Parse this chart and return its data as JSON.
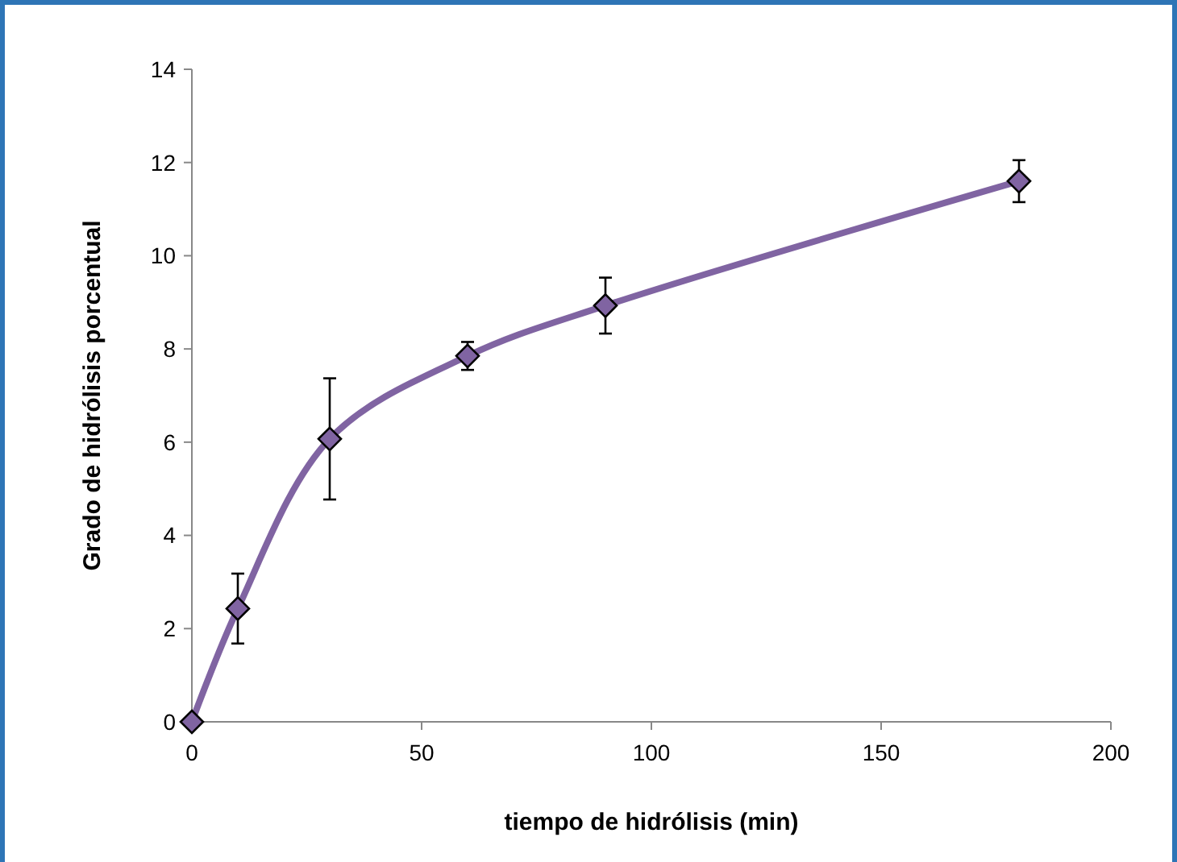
{
  "chart_data": {
    "type": "line",
    "xlabel": "tiempo de hidrólisis (min)",
    "ylabel": "Grado de hidrólisis porcentual",
    "x": [
      0,
      10,
      30,
      60,
      90,
      180
    ],
    "series": [
      {
        "color": "#8064a2",
        "values": [
          0,
          2.43,
          6.07,
          7.85,
          8.93,
          11.6
        ],
        "errors": [
          null,
          0.75,
          1.3,
          0.3,
          0.6,
          0.45
        ]
      }
    ],
    "xlim": [
      0,
      200
    ],
    "xticks": [
      0,
      50,
      100,
      150,
      200
    ],
    "ylim": [
      0,
      14
    ],
    "yticks": [
      0,
      2,
      4,
      6,
      8,
      10,
      12,
      14
    ],
    "marker": "diamond",
    "line_style": "solid",
    "grid": false
  }
}
